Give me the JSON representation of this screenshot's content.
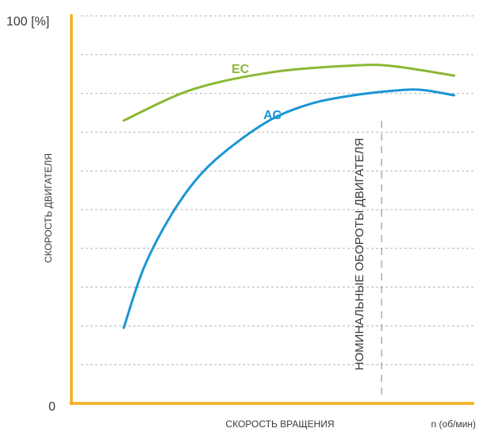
{
  "chart_data": {
    "type": "line",
    "title": "",
    "xlabel": "СКОРОСТЬ ВРАЩЕНИЯ",
    "xunit": "n (об/мин)",
    "ylabel": "СКОРОСТЬ ДВИГАТЕЛЯ",
    "ytick_top": "100 [%]",
    "ytick_bottom": "0",
    "ylim": [
      0,
      100
    ],
    "xlim": [
      0,
      100
    ],
    "grid": true,
    "annotation": "НОМИНАЛЬНЫЕ ОБОРОТЫ ДВИГАТЕЛЯ",
    "annotation_x": 77,
    "series": [
      {
        "name": "EC",
        "color": "#8ab832",
        "x": [
          13,
          30,
          50,
          70,
          80,
          95
        ],
        "y": [
          73,
          81,
          85.5,
          87.2,
          87,
          84.6
        ]
      },
      {
        "name": "AC",
        "color": "#1a95d4",
        "x": [
          13,
          18,
          25,
          32,
          40,
          50,
          60,
          70,
          80,
          87,
          95
        ],
        "y": [
          19.5,
          35,
          49,
          59,
          66.5,
          73.5,
          77.5,
          79.5,
          80.7,
          80.9,
          79.5
        ]
      }
    ]
  },
  "colors": {
    "axis": "#f5ad1e",
    "grid": "#b4b4b4",
    "marker": "#a0a0a0",
    "text": "#3a3a3a"
  }
}
